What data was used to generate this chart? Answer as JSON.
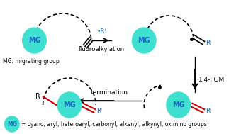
{
  "bg_color": "#ffffff",
  "mg_color": "#40e0d0",
  "mg_text_color": "#1565c0",
  "rf_color": "#1565c0",
  "bond_color": "#000000",
  "red_bond_color": "#cc0000",
  "label_fluoroalkylation": "fluoroalkylation",
  "label_rf_radical": "•Rⁱ",
  "label_14fgm": "1,4-FGM",
  "label_termination": "termination",
  "label_mg_def": "MG: migrating group",
  "label_legend": "= cyano, aryl, heteroaryl, carbonyl, alkenyl, alkynyl, oximino groups",
  "figsize": [
    3.4,
    1.89
  ],
  "dpi": 100
}
